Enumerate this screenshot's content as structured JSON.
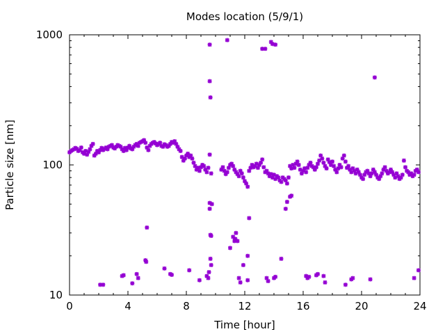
{
  "chart_data": {
    "type": "scatter",
    "title": "Modes location (5/9/1)",
    "xlabel": "Time [hour]",
    "ylabel": "Particle size [nm]",
    "xlim": [
      0,
      24
    ],
    "ylim": [
      10,
      1000
    ],
    "yscale": "log",
    "x_ticks": [
      0,
      4,
      8,
      12,
      16,
      20,
      24
    ],
    "y_ticks": [
      10,
      100,
      1000
    ],
    "x_minor_step": 1,
    "grid": false,
    "legend": "none",
    "marker_color": "#9400d3",
    "marker": "star",
    "series": [
      {
        "points": [
          [
            0.0,
            125
          ],
          [
            0.1,
            128
          ],
          [
            0.2,
            130
          ],
          [
            0.3,
            132
          ],
          [
            0.4,
            135
          ],
          [
            0.5,
            133
          ],
          [
            0.6,
            128
          ],
          [
            0.7,
            130
          ],
          [
            0.8,
            136
          ],
          [
            0.9,
            125
          ],
          [
            1.0,
            122
          ],
          [
            1.1,
            128
          ],
          [
            1.2,
            120
          ],
          [
            1.3,
            126
          ],
          [
            1.4,
            132
          ],
          [
            1.5,
            140
          ],
          [
            1.6,
            145
          ],
          [
            1.7,
            118
          ],
          [
            1.8,
            122
          ],
          [
            1.9,
            128
          ],
          [
            2.0,
            125
          ],
          [
            2.1,
            130
          ],
          [
            2.2,
            135
          ],
          [
            2.3,
            130
          ],
          [
            2.4,
            133
          ],
          [
            2.5,
            136
          ],
          [
            2.6,
            132
          ],
          [
            2.7,
            138
          ],
          [
            2.8,
            140
          ],
          [
            2.9,
            142
          ],
          [
            3.0,
            136
          ],
          [
            3.1,
            134
          ],
          [
            3.2,
            138
          ],
          [
            3.3,
            142
          ],
          [
            3.4,
            140
          ],
          [
            3.5,
            138
          ],
          [
            3.6,
            132
          ],
          [
            3.7,
            128
          ],
          [
            3.8,
            135
          ],
          [
            3.9,
            130
          ],
          [
            4.0,
            136
          ],
          [
            4.1,
            140
          ],
          [
            4.2,
            134
          ],
          [
            4.3,
            132
          ],
          [
            4.4,
            138
          ],
          [
            4.5,
            142
          ],
          [
            4.6,
            145
          ],
          [
            4.7,
            140
          ],
          [
            4.8,
            148
          ],
          [
            4.9,
            150
          ],
          [
            5.0,
            152
          ],
          [
            5.1,
            155
          ],
          [
            5.2,
            148
          ],
          [
            5.3,
            136
          ],
          [
            5.4,
            130
          ],
          [
            5.5,
            140
          ],
          [
            5.6,
            145
          ],
          [
            5.7,
            148
          ],
          [
            5.8,
            150
          ],
          [
            5.9,
            146
          ],
          [
            6.0,
            142
          ],
          [
            6.1,
            145
          ],
          [
            6.2,
            148
          ],
          [
            6.3,
            140
          ],
          [
            6.4,
            138
          ],
          [
            6.5,
            144
          ],
          [
            6.6,
            142
          ],
          [
            6.7,
            138
          ],
          [
            6.8,
            140
          ],
          [
            6.9,
            145
          ],
          [
            7.0,
            150
          ],
          [
            7.1,
            148
          ],
          [
            7.2,
            152
          ],
          [
            7.3,
            145
          ],
          [
            7.4,
            138
          ],
          [
            7.5,
            132
          ],
          [
            7.6,
            128
          ],
          [
            7.7,
            115
          ],
          [
            7.8,
            108
          ],
          [
            7.9,
            112
          ],
          [
            8.0,
            118
          ],
          [
            8.1,
            122
          ],
          [
            8.2,
            115
          ],
          [
            8.3,
            118
          ],
          [
            8.4,
            112
          ],
          [
            8.5,
            104
          ],
          [
            8.6,
            98
          ],
          [
            8.7,
            92
          ],
          [
            8.8,
            95
          ],
          [
            8.9,
            90
          ],
          [
            9.0,
            96
          ],
          [
            9.1,
            100
          ],
          [
            9.2,
            98
          ],
          [
            9.3,
            92
          ],
          [
            9.4,
            88
          ],
          [
            9.5,
            95
          ],
          [
            9.6,
            120
          ],
          [
            9.7,
            86
          ],
          [
            10.4,
            92
          ],
          [
            10.5,
            96
          ],
          [
            10.6,
            90
          ],
          [
            10.7,
            85
          ],
          [
            10.8,
            88
          ],
          [
            10.9,
            95
          ],
          [
            11.0,
            100
          ],
          [
            11.1,
            102
          ],
          [
            11.2,
            98
          ],
          [
            11.3,
            92
          ],
          [
            11.4,
            88
          ],
          [
            11.5,
            85
          ],
          [
            11.6,
            82
          ],
          [
            11.7,
            90
          ],
          [
            11.8,
            86
          ],
          [
            11.9,
            80
          ],
          [
            12.0,
            75
          ],
          [
            12.1,
            72
          ],
          [
            12.2,
            68
          ],
          [
            12.3,
            90
          ],
          [
            12.4,
            95
          ],
          [
            12.5,
            100
          ],
          [
            12.6,
            96
          ],
          [
            12.7,
            98
          ],
          [
            12.8,
            102
          ],
          [
            12.9,
            95
          ],
          [
            13.0,
            100
          ],
          [
            13.1,
            104
          ],
          [
            13.2,
            110
          ],
          [
            13.3,
            96
          ],
          [
            13.4,
            88
          ],
          [
            13.5,
            90
          ],
          [
            13.6,
            86
          ],
          [
            13.7,
            82
          ],
          [
            13.8,
            85
          ],
          [
            13.9,
            80
          ],
          [
            14.0,
            84
          ],
          [
            14.1,
            78
          ],
          [
            14.2,
            82
          ],
          [
            14.3,
            80
          ],
          [
            14.4,
            76
          ],
          [
            14.5,
            74
          ],
          [
            14.6,
            80
          ],
          [
            14.7,
            78
          ],
          [
            14.8,
            76
          ],
          [
            14.9,
            72
          ],
          [
            15.0,
            80
          ],
          [
            15.1,
            98
          ],
          [
            15.2,
            94
          ],
          [
            15.3,
            100
          ],
          [
            15.4,
            95
          ],
          [
            15.5,
            102
          ],
          [
            15.6,
            106
          ],
          [
            15.7,
            100
          ],
          [
            15.8,
            92
          ],
          [
            15.9,
            86
          ],
          [
            16.0,
            90
          ],
          [
            16.1,
            94
          ],
          [
            16.2,
            88
          ],
          [
            16.3,
            95
          ],
          [
            16.4,
            100
          ],
          [
            16.5,
            104
          ],
          [
            16.6,
            98
          ],
          [
            16.7,
            96
          ],
          [
            16.8,
            92
          ],
          [
            16.9,
            96
          ],
          [
            17.0,
            102
          ],
          [
            17.1,
            108
          ],
          [
            17.2,
            118
          ],
          [
            17.3,
            112
          ],
          [
            17.4,
            104
          ],
          [
            17.5,
            98
          ],
          [
            17.6,
            94
          ],
          [
            17.7,
            110
          ],
          [
            17.8,
            105
          ],
          [
            17.9,
            100
          ],
          [
            18.0,
            106
          ],
          [
            18.1,
            98
          ],
          [
            18.2,
            92
          ],
          [
            18.3,
            88
          ],
          [
            18.4,
            94
          ],
          [
            18.5,
            100
          ],
          [
            18.6,
            96
          ],
          [
            18.7,
            112
          ],
          [
            18.8,
            118
          ],
          [
            18.9,
            106
          ],
          [
            19.0,
            95
          ],
          [
            19.1,
            98
          ],
          [
            19.2,
            92
          ],
          [
            19.3,
            88
          ],
          [
            19.4,
            94
          ],
          [
            19.5,
            90
          ],
          [
            19.6,
            86
          ],
          [
            19.7,
            92
          ],
          [
            19.8,
            88
          ],
          [
            19.9,
            84
          ],
          [
            20.0,
            80
          ],
          [
            20.1,
            78
          ],
          [
            20.2,
            84
          ],
          [
            20.3,
            88
          ],
          [
            20.4,
            90
          ],
          [
            20.5,
            86
          ],
          [
            20.6,
            82
          ],
          [
            20.7,
            86
          ],
          [
            20.8,
            92
          ],
          [
            20.9,
            88
          ],
          [
            21.0,
            84
          ],
          [
            21.1,
            80
          ],
          [
            21.2,
            78
          ],
          [
            21.3,
            82
          ],
          [
            21.4,
            86
          ],
          [
            21.5,
            92
          ],
          [
            21.6,
            96
          ],
          [
            21.7,
            90
          ],
          [
            21.8,
            86
          ],
          [
            21.9,
            88
          ],
          [
            22.0,
            92
          ],
          [
            22.1,
            88
          ],
          [
            22.2,
            84
          ],
          [
            22.3,
            80
          ],
          [
            22.4,
            86
          ],
          [
            22.5,
            82
          ],
          [
            22.6,
            78
          ],
          [
            22.7,
            80
          ],
          [
            22.8,
            84
          ],
          [
            22.9,
            108
          ],
          [
            23.0,
            96
          ],
          [
            23.1,
            90
          ],
          [
            23.2,
            88
          ],
          [
            23.3,
            84
          ],
          [
            23.4,
            86
          ],
          [
            23.5,
            82
          ],
          [
            23.6,
            84
          ],
          [
            23.7,
            90
          ],
          [
            23.8,
            92
          ],
          [
            23.9,
            88
          ],
          [
            2.1,
            12
          ],
          [
            2.3,
            12
          ],
          [
            3.6,
            14
          ],
          [
            3.7,
            14.2
          ],
          [
            4.3,
            12.3
          ],
          [
            4.6,
            14.5
          ],
          [
            4.7,
            13.5
          ],
          [
            5.2,
            18.5
          ],
          [
            5.25,
            18
          ],
          [
            5.3,
            33
          ],
          [
            6.5,
            16
          ],
          [
            6.9,
            14.5
          ],
          [
            7.0,
            14.3
          ],
          [
            8.2,
            15.5
          ],
          [
            8.9,
            13
          ],
          [
            9.4,
            14
          ],
          [
            9.5,
            13.5
          ],
          [
            9.55,
            15
          ],
          [
            9.6,
            840
          ],
          [
            9.6,
            440
          ],
          [
            9.65,
            330
          ],
          [
            9.6,
            51
          ],
          [
            9.6,
            46
          ],
          [
            9.65,
            29
          ],
          [
            9.7,
            28.5
          ],
          [
            9.65,
            19
          ],
          [
            9.7,
            17
          ],
          [
            9.75,
            50
          ],
          [
            10.8,
            910
          ],
          [
            11.0,
            23
          ],
          [
            11.2,
            28
          ],
          [
            11.3,
            26
          ],
          [
            11.35,
            27
          ],
          [
            11.4,
            30
          ],
          [
            11.5,
            26
          ],
          [
            11.6,
            13.5
          ],
          [
            11.7,
            12.5
          ],
          [
            11.9,
            17
          ],
          [
            12.2,
            20
          ],
          [
            12.3,
            39
          ],
          [
            12.2,
            13
          ],
          [
            13.2,
            780
          ],
          [
            13.4,
            780
          ],
          [
            13.5,
            13.5
          ],
          [
            13.6,
            12.8
          ],
          [
            13.8,
            880
          ],
          [
            13.9,
            850
          ],
          [
            14.1,
            840
          ],
          [
            14.0,
            13.5
          ],
          [
            14.1,
            13.8
          ],
          [
            14.5,
            19
          ],
          [
            14.8,
            46
          ],
          [
            14.9,
            52
          ],
          [
            15.1,
            57
          ],
          [
            15.2,
            58
          ],
          [
            16.2,
            14
          ],
          [
            16.3,
            13.5
          ],
          [
            16.4,
            13.8
          ],
          [
            16.9,
            14.2
          ],
          [
            17.0,
            14.5
          ],
          [
            17.4,
            14
          ],
          [
            17.5,
            12.5
          ],
          [
            18.9,
            12
          ],
          [
            19.3,
            13.2
          ],
          [
            19.4,
            13.5
          ],
          [
            20.6,
            13.2
          ],
          [
            20.9,
            470
          ],
          [
            23.6,
            13.5
          ],
          [
            23.9,
            15.5
          ]
        ]
      }
    ]
  }
}
